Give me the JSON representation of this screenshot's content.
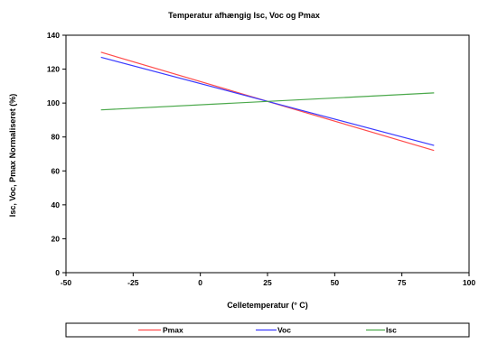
{
  "chart_data": {
    "type": "line",
    "title": "Temperatur afhængig Isc, Voc og Pmax",
    "xlabel": "Celletemperatur (° C)",
    "ylabel": "Isc, Voc, Pmax Normaliseret (%)",
    "xlim": [
      -50,
      100
    ],
    "ylim": [
      0,
      140
    ],
    "x_ticks": [
      -50,
      -25,
      0,
      25,
      50,
      75,
      100
    ],
    "y_ticks": [
      0,
      20,
      40,
      60,
      80,
      100,
      120,
      140
    ],
    "grid": false,
    "legend_position": "bottom",
    "series": [
      {
        "name": "Pmax",
        "color": "#ff4b4b",
        "x": [
          -37,
          87
        ],
        "y": [
          130,
          72
        ]
      },
      {
        "name": "Voc",
        "color": "#3a3aff",
        "x": [
          -37,
          87
        ],
        "y": [
          127,
          75
        ]
      },
      {
        "name": "Isc",
        "color": "#4aa84a",
        "x": [
          -37,
          87
        ],
        "y": [
          96,
          106
        ]
      }
    ]
  }
}
